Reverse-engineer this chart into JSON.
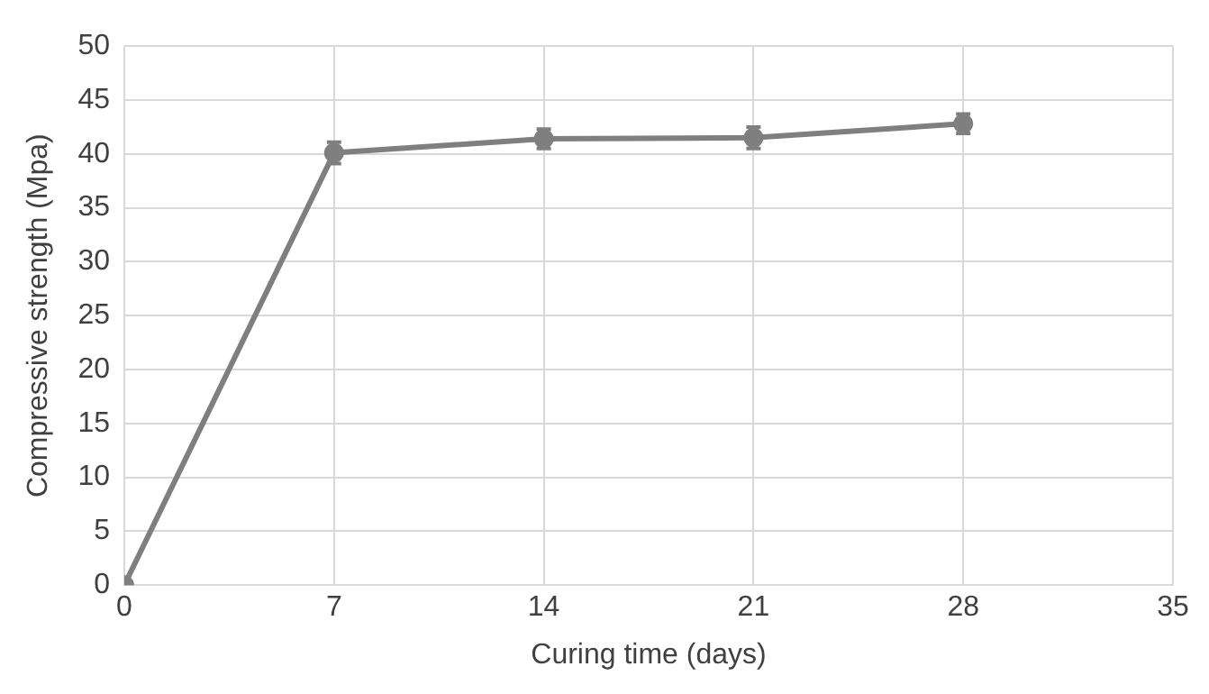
{
  "chart_data": {
    "type": "line",
    "xlabel": "Curing time (days)",
    "ylabel": "Compressive strength (Mpa)",
    "x": [
      0,
      7,
      14,
      21,
      28
    ],
    "series": [
      {
        "color": "#7f7f7f",
        "values": [
          0,
          40.1,
          41.4,
          41.5,
          42.8
        ],
        "errors": [
          null,
          1,
          0.9,
          1,
          0.9
        ]
      }
    ],
    "xlim": [
      0,
      35
    ],
    "xticks": [
      0,
      7,
      14,
      21,
      28,
      35
    ],
    "ylim": [
      0,
      50
    ],
    "yticks": [
      0,
      5,
      10,
      15,
      20,
      25,
      30,
      35,
      40,
      45,
      50
    ],
    "grid": true,
    "legend": false,
    "marker": "circle",
    "line_style": "solid"
  }
}
